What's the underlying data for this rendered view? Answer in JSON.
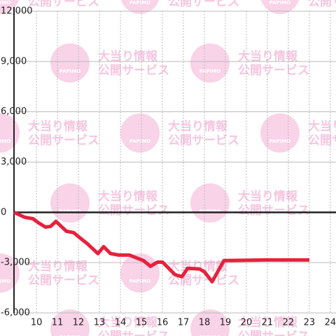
{
  "watermark": {
    "line1": "大当り情報",
    "line2": "公開サービス",
    "logo": "PAPIMO"
  },
  "chart_data": {
    "type": "line",
    "x": [
      8.93,
      9.43,
      9.83,
      10.1,
      10.43,
      10.67,
      10.93,
      11.43,
      11.77,
      12.1,
      12.43,
      12.93,
      13.2,
      13.53,
      13.93,
      14.43,
      14.77,
      15.1,
      15.43,
      15.77,
      16.0,
      16.27,
      16.6,
      16.93,
      17.2,
      17.77,
      18.0,
      18.37,
      18.93,
      20.93,
      23.0
    ],
    "series": [
      {
        "color": "#e8203c",
        "values": [
          0,
          -290,
          -380,
          -630,
          -880,
          -840,
          -540,
          -1130,
          -1210,
          -1550,
          -1880,
          -2460,
          -2050,
          -2460,
          -2550,
          -2550,
          -2720,
          -2880,
          -3220,
          -2970,
          -2970,
          -3300,
          -3720,
          -3840,
          -3340,
          -3380,
          -3550,
          -4140,
          -2880,
          -2840,
          -2840
        ]
      }
    ],
    "xlim": [
      8.93,
      24.27
    ],
    "ylim": [
      -6000,
      12000
    ],
    "xticks": [
      10,
      11,
      12,
      13,
      14,
      15,
      16,
      17,
      18,
      19,
      20,
      21,
      22,
      23,
      24
    ],
    "yticks": [
      {
        "value": 12000,
        "label": "12,000"
      },
      {
        "value": 9000,
        "label": "9,000"
      },
      {
        "value": 6000,
        "label": "6,000"
      },
      {
        "value": 3000,
        "label": "3,000"
      },
      0,
      {
        "value": -3000,
        "label": "-3,000"
      },
      {
        "value": -6000,
        "label": "-6,000"
      }
    ],
    "grid": true
  }
}
